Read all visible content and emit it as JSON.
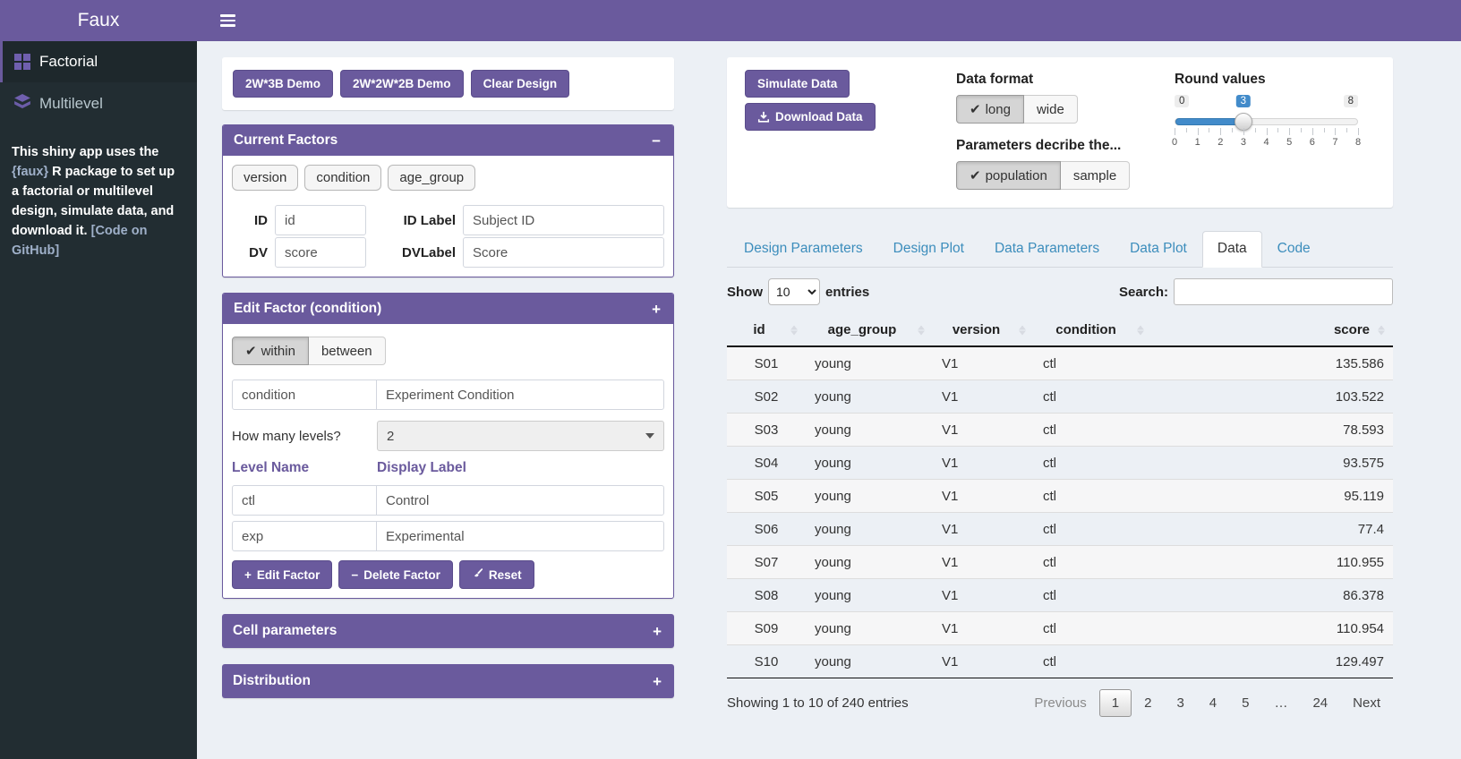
{
  "colors": {
    "accent_purple": "#6a5a9d",
    "sidebar_bg": "#222d32",
    "sidebar_active_bg": "#1e282c",
    "tab_link_blue": "#3c8dbc",
    "slider_blue": "#428bca",
    "page_bg": "#ecf0f5"
  },
  "navbar": {
    "brand": "Faux"
  },
  "sidebar": {
    "items": [
      {
        "label": "Factorial",
        "icon": "grid-icon",
        "active": true
      },
      {
        "label": "Multilevel",
        "icon": "layers-icon",
        "active": false
      }
    ],
    "description": {
      "text_1": "This shiny app uses the ",
      "link_faux": "{faux}",
      "text_2": " R package to set up a factorial or multilevel design, simulate data, and download it. ",
      "link_github": "[Code on GitHub]"
    }
  },
  "demo_buttons": [
    "2W*3B Demo",
    "2W*2W*2B Demo",
    "Clear Design"
  ],
  "current_factors": {
    "title": "Current Factors",
    "collapse_icon": "−",
    "chips": [
      "version",
      "condition",
      "age_group"
    ],
    "fields": [
      {
        "label": "ID",
        "value": "id"
      },
      {
        "label": "ID Label",
        "value": "Subject ID"
      },
      {
        "label": "DV",
        "value": "score"
      },
      {
        "label": "DVLabel",
        "value": "Score"
      }
    ]
  },
  "edit_factor": {
    "title": "Edit Factor (condition)",
    "collapse_icon": "+",
    "type_toggle": {
      "options": [
        "within",
        "between"
      ],
      "selected": "within",
      "check_glyph": "✔"
    },
    "factor_name": "condition",
    "factor_label": "Experiment Condition",
    "levels_question": "How many levels?",
    "levels_value": "2",
    "level_name_header": "Level Name",
    "display_label_header": "Display Label",
    "levels": [
      {
        "name": "ctl",
        "label": "Control"
      },
      {
        "name": "exp",
        "label": "Experimental"
      }
    ],
    "actions": [
      {
        "icon": "plus-icon",
        "glyph": "+",
        "label": "Edit Factor"
      },
      {
        "icon": "minus-icon",
        "glyph": "−",
        "label": "Delete Factor"
      },
      {
        "icon": "brush-icon",
        "glyph": "",
        "label": "Reset"
      }
    ]
  },
  "cell_parameters": {
    "title": "Cell parameters",
    "collapse_icon": "+"
  },
  "distribution": {
    "title": "Distribution",
    "collapse_icon": "+"
  },
  "sim_panel": {
    "simulate_label": "Simulate Data",
    "download_label": "Download Data",
    "data_format": {
      "label": "Data format",
      "options": [
        "long",
        "wide"
      ],
      "selected": "long",
      "check_glyph": "✔"
    },
    "parameters": {
      "label": "Parameters decribe the...",
      "options": [
        "population",
        "sample"
      ],
      "selected": "population",
      "check_glyph": "✔"
    },
    "round_slider": {
      "label": "Round values",
      "min": 0,
      "max": 8,
      "value": 3,
      "tick_labels": [
        0,
        1,
        2,
        3,
        4,
        5,
        6,
        7,
        8
      ]
    }
  },
  "tabs": {
    "items": [
      "Design Parameters",
      "Design Plot",
      "Data Parameters",
      "Data Plot",
      "Data",
      "Code"
    ],
    "active": "Data"
  },
  "table_controls": {
    "show_label": "Show",
    "entries_label": "entries",
    "page_length": "10",
    "search_label": "Search:",
    "search_value": ""
  },
  "data_table": {
    "columns": [
      "id",
      "age_group",
      "version",
      "condition",
      "score"
    ],
    "rows": [
      [
        "S01",
        "young",
        "V1",
        "ctl",
        "135.586"
      ],
      [
        "S02",
        "young",
        "V1",
        "ctl",
        "103.522"
      ],
      [
        "S03",
        "young",
        "V1",
        "ctl",
        "78.593"
      ],
      [
        "S04",
        "young",
        "V1",
        "ctl",
        "93.575"
      ],
      [
        "S05",
        "young",
        "V1",
        "ctl",
        "95.119"
      ],
      [
        "S06",
        "young",
        "V1",
        "ctl",
        "77.4"
      ],
      [
        "S07",
        "young",
        "V1",
        "ctl",
        "110.955"
      ],
      [
        "S08",
        "young",
        "V1",
        "ctl",
        "86.378"
      ],
      [
        "S09",
        "young",
        "V1",
        "ctl",
        "110.954"
      ],
      [
        "S10",
        "young",
        "V1",
        "ctl",
        "129.497"
      ]
    ]
  },
  "table_footer": {
    "info": "Showing 1 to 10 of 240 entries",
    "previous_label": "Previous",
    "pages": [
      "1",
      "2",
      "3",
      "4",
      "5",
      "…",
      "24"
    ],
    "active_page": "1",
    "next_label": "Next"
  }
}
